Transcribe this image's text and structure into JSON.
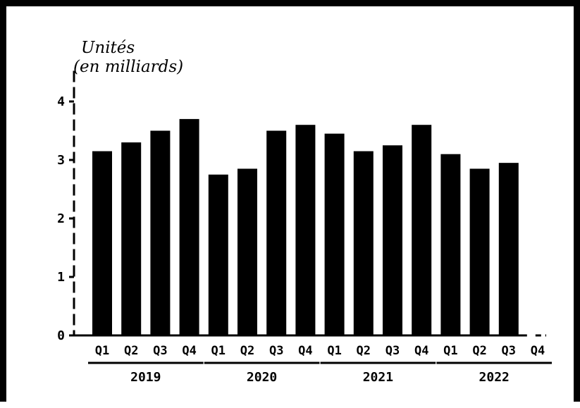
{
  "colors": {
    "bar": "#000000",
    "axis": "#000000",
    "background": "#ffffff",
    "frame": "#000000"
  },
  "chart_data": {
    "type": "bar",
    "ylabel_lines": [
      "Unités",
      "(en milliards)"
    ],
    "ylim": [
      0,
      4.5
    ],
    "yticks": [
      0,
      1,
      2,
      3,
      4
    ],
    "grid": false,
    "legend": "none",
    "categories": [
      "Q1",
      "Q2",
      "Q3",
      "Q4",
      "Q1",
      "Q2",
      "Q3",
      "Q4",
      "Q1",
      "Q2",
      "Q3",
      "Q4",
      "Q1",
      "Q2",
      "Q3",
      "Q4"
    ],
    "groups": [
      {
        "label": "2019",
        "categories": [
          "Q1",
          "Q2",
          "Q3",
          "Q4"
        ],
        "values": [
          3.15,
          3.3,
          3.5,
          3.7
        ]
      },
      {
        "label": "2020",
        "categories": [
          "Q1",
          "Q2",
          "Q3",
          "Q4"
        ],
        "values": [
          2.75,
          2.85,
          3.5,
          3.6
        ]
      },
      {
        "label": "2021",
        "categories": [
          "Q1",
          "Q2",
          "Q3",
          "Q4"
        ],
        "values": [
          3.45,
          3.15,
          3.25,
          3.6
        ]
      },
      {
        "label": "2022",
        "categories": [
          "Q1",
          "Q2",
          "Q3",
          "Q4"
        ],
        "values": [
          3.1,
          2.85,
          2.95,
          null
        ]
      }
    ]
  }
}
